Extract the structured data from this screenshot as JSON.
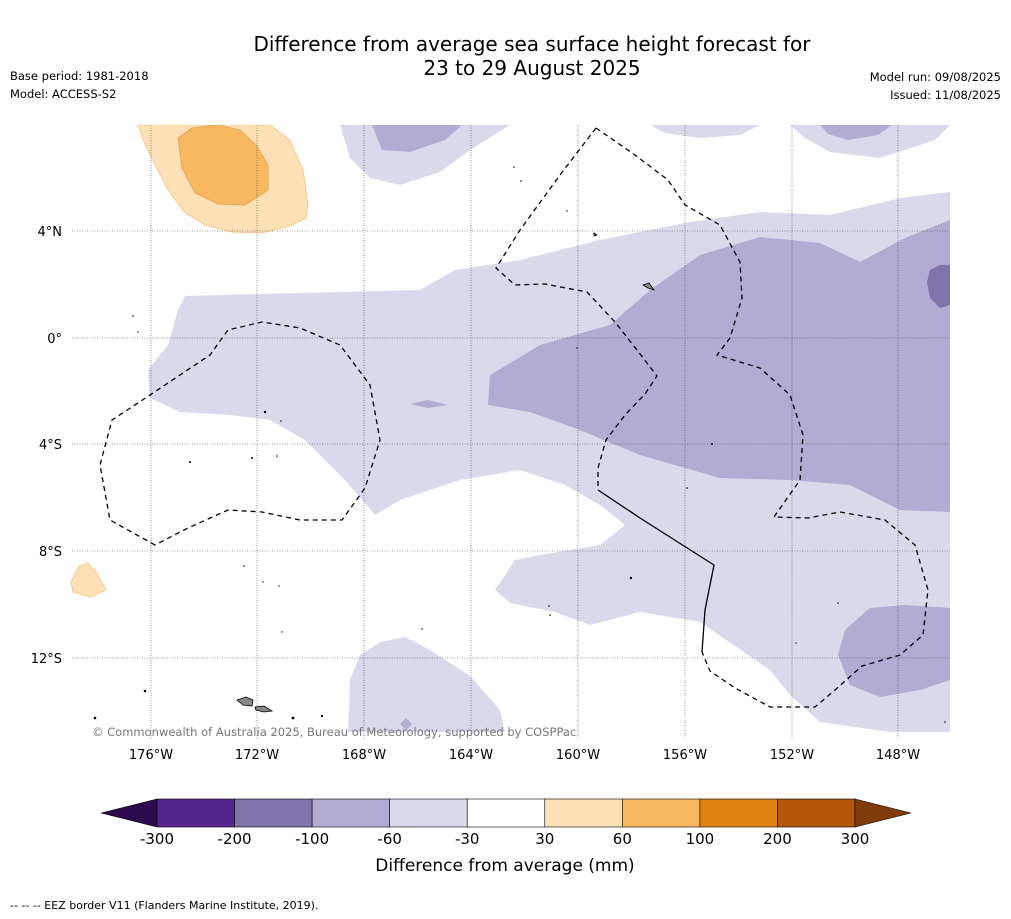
{
  "header": {
    "title_line1": "Difference from average sea surface height forecast for",
    "title_line2": "23 to 29 August 2025",
    "base_period": "Base period: 1981-2018",
    "model": "Model: ACCESS-S2",
    "model_run": "Model run: 09/08/2025",
    "issued": "Issued: 11/08/2025"
  },
  "map": {
    "lat_labels": [
      "4°N",
      "0°",
      "4°S",
      "8°S",
      "12°S"
    ],
    "lon_labels": [
      "176°W",
      "172°W",
      "168°W",
      "164°W",
      "160°W",
      "156°W",
      "152°W",
      "148°W"
    ],
    "copyright": "© Commonwealth of Australia 2025, Bureau of Meteorology, supported by COSPPac"
  },
  "legend": {
    "tick_labels": [
      "-300",
      "-200",
      "-100",
      "-60",
      "-30",
      "30",
      "60",
      "100",
      "200",
      "300"
    ],
    "title": "Difference from average (mm)",
    "colors": [
      "#2d0a4e",
      "#54278f",
      "#8073ac",
      "#b2abd2",
      "#d8daeb",
      "#ffffff",
      "#fee0b6",
      "#f8b860",
      "#e08214",
      "#b35806",
      "#7f3b08"
    ]
  },
  "footnote": "--  --  -- EEZ border V11 (Flanders Marine Institute, 2019)."
}
